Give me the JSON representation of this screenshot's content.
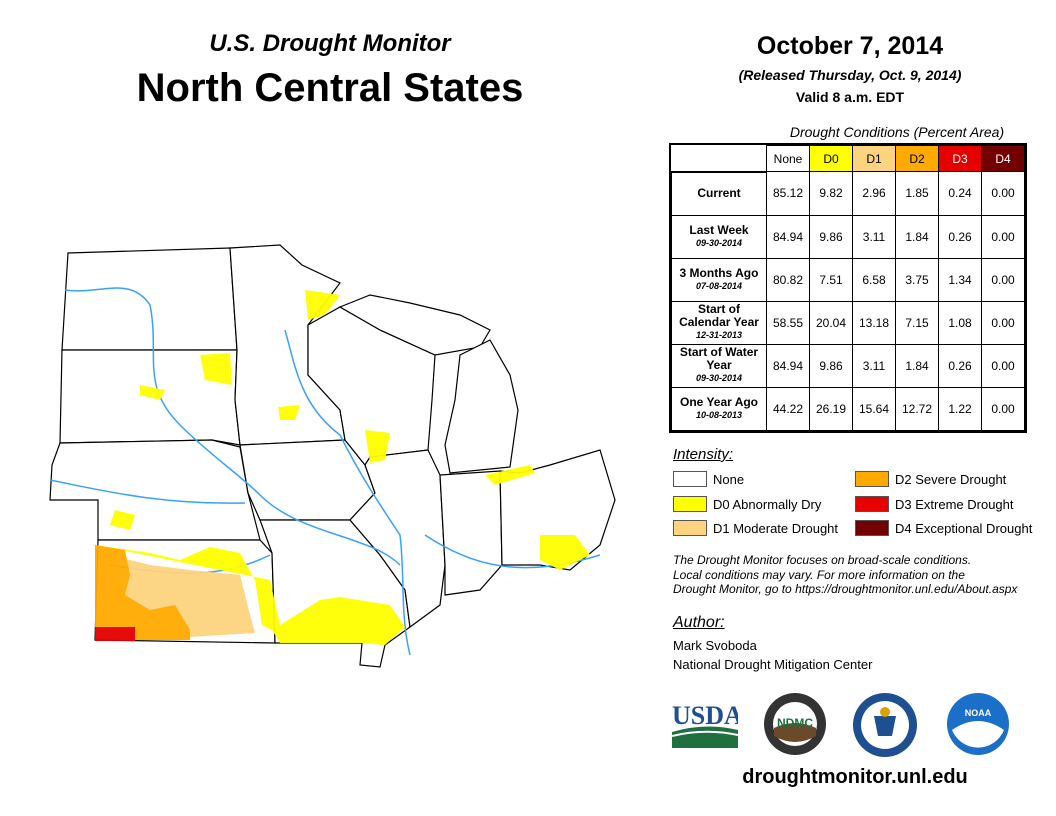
{
  "header": {
    "subtitle": "U.S. Drought Monitor",
    "title": "North Central States",
    "date": "October 7, 2014",
    "released": "(Released Thursday, Oct. 9, 2014)",
    "valid": "Valid 8 a.m. EDT"
  },
  "table": {
    "caption": "Drought Conditions (Percent Area)",
    "columns": [
      "None",
      "D0",
      "D1",
      "D2",
      "D3",
      "D4"
    ],
    "column_colors": [
      "#ffffff",
      "#ffff00",
      "#fcd37f",
      "#ffaa00",
      "#e60000",
      "#730000"
    ],
    "column_text_colors": [
      "#000000",
      "#000000",
      "#000000",
      "#000000",
      "#ffffff",
      "#ffffff"
    ],
    "rows": [
      {
        "label": "Current",
        "date": "",
        "values": [
          "85.12",
          "9.82",
          "2.96",
          "1.85",
          "0.24",
          "0.00"
        ]
      },
      {
        "label": "Last Week",
        "date": "09-30-2014",
        "values": [
          "84.94",
          "9.86",
          "3.11",
          "1.84",
          "0.26",
          "0.00"
        ]
      },
      {
        "label": "3 Months Ago",
        "date": "07-08-2014",
        "values": [
          "80.82",
          "7.51",
          "6.58",
          "3.75",
          "1.34",
          "0.00"
        ]
      },
      {
        "label": "Start of Calendar Year",
        "date": "12-31-2013",
        "values": [
          "58.55",
          "20.04",
          "13.18",
          "7.15",
          "1.08",
          "0.00"
        ]
      },
      {
        "label": "Start of Water Year",
        "date": "09-30-2014",
        "values": [
          "84.94",
          "9.86",
          "3.11",
          "1.84",
          "0.26",
          "0.00"
        ]
      },
      {
        "label": "One Year Ago",
        "date": "10-08-2013",
        "values": [
          "44.22",
          "26.19",
          "15.64",
          "12.72",
          "1.22",
          "0.00"
        ]
      }
    ]
  },
  "legend": {
    "title": "Intensity:",
    "items": [
      {
        "label": "None",
        "color": "#ffffff"
      },
      {
        "label": "D0 Abnormally Dry",
        "color": "#ffff00"
      },
      {
        "label": "D1 Moderate Drought",
        "color": "#fcd37f"
      },
      {
        "label": "D2 Severe Drought",
        "color": "#ffaa00"
      },
      {
        "label": "D3 Extreme Drought",
        "color": "#e60000"
      },
      {
        "label": "D4 Exceptional Drought",
        "color": "#730000"
      }
    ]
  },
  "note": {
    "line1": "The Drought Monitor focuses on broad-scale conditions.",
    "line2": "Local conditions may vary. For more information on the",
    "line3": "Drought Monitor, go to https://droughtmonitor.unl.edu/About.aspx"
  },
  "author": {
    "title": "Author:",
    "name": "Mark Svoboda",
    "org": "National Drought Mitigation Center"
  },
  "logos": {
    "usda": "USDA",
    "ndmc": "NDMC",
    "noaa": "NOAA"
  },
  "footer": {
    "site": "droughtmonitor.unl.edu"
  }
}
